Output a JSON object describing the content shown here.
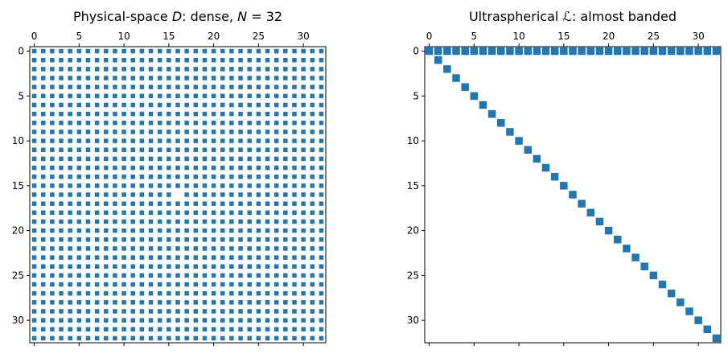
{
  "chart_data": [
    {
      "type": "heatmap",
      "subtype": "sparsity-pattern",
      "title": "Physical-space D: dense, N = 32",
      "title_parts": {
        "prefix": "Physical-space ",
        "symbol": "D",
        "middle": ": dense, ",
        "var": "N",
        "equals": " = 32"
      },
      "n_rows": 33,
      "n_cols": 33,
      "marker_size": "small",
      "pattern": "dense",
      "nonzero_rule": "all entries nonzero except the central diagonal entry",
      "zero_entries": [
        [
          16,
          16
        ]
      ],
      "xticks": [
        0,
        5,
        10,
        15,
        20,
        25,
        30
      ],
      "yticks": [
        0,
        5,
        10,
        15,
        20,
        25,
        30
      ],
      "xtick_position": "top",
      "xlim": [
        -0.5,
        32.5
      ],
      "ylim": [
        32.5,
        -0.5
      ],
      "grid": false,
      "color": "#1f77b4"
    },
    {
      "type": "heatmap",
      "subtype": "sparsity-pattern",
      "title": "Ultraspherical ℒ: almost banded",
      "title_parts": {
        "prefix": "Ultraspherical ",
        "symbol": "ℒ",
        "suffix": ": almost banded"
      },
      "n_rows": 33,
      "n_cols": 33,
      "marker_size": "large",
      "pattern": "first row full plus main diagonal",
      "nonzero_rule": "row 0 all columns; entries (i, i) for i = 1..32",
      "xticks": [
        0,
        5,
        10,
        15,
        20,
        25,
        30
      ],
      "yticks": [
        0,
        5,
        10,
        15,
        20,
        25,
        30
      ],
      "xtick_position": "top",
      "xlim": [
        -0.5,
        32.5
      ],
      "ylim": [
        32.5,
        -0.5
      ],
      "grid": false,
      "color": "#1f77b4"
    }
  ]
}
